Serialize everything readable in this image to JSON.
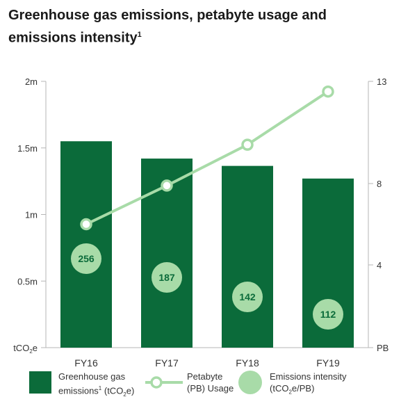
{
  "title": "Greenhouse gas emissions, petabyte usage and emissions intensity",
  "title_footnote": "1",
  "chart_data": {
    "type": "bar",
    "categories": [
      "FY16",
      "FY17",
      "FY18",
      "FY19"
    ],
    "series": [
      {
        "name": "Greenhouse gas emissions¹ (tCO₂e)",
        "kind": "bar",
        "axis": "left",
        "values": [
          1550000,
          1420000,
          1365000,
          1270000
        ]
      },
      {
        "name": "Petabyte (PB) Usage",
        "kind": "line",
        "axis": "right",
        "values": [
          6.0,
          7.9,
          9.9,
          12.5
        ]
      },
      {
        "name": "Emissions intensity (tCO₂e/PB)",
        "kind": "circle-label",
        "values": [
          256,
          187,
          142,
          112
        ]
      }
    ],
    "left_axis": {
      "unit": "tCO₂e",
      "ticks": [
        0,
        500000,
        1000000,
        1500000,
        2000000
      ],
      "tick_labels": [
        "tCO₂e",
        "0.5m",
        "1m",
        "1.5m",
        "2m"
      ],
      "range": [
        0,
        2000000
      ]
    },
    "right_axis": {
      "unit": "PB",
      "ticks": [
        0,
        4,
        8,
        13
      ],
      "tick_labels": [
        "PB",
        "4",
        "8",
        "13"
      ],
      "breakpoints": [
        0,
        4,
        8,
        13
      ]
    },
    "grid": false,
    "colors": {
      "bar": "#0b6b3a",
      "line": "#a8dba8",
      "intensity_circle": "#a8dba8",
      "intensity_text": "#0b6b3a"
    }
  },
  "legend": {
    "emissions_line1": "Greenhouse gas",
    "emissions_line2_prefix": "emissions",
    "emissions_sup": "1",
    "emissions_line2_mid": " (tCO",
    "emissions_sub": "2",
    "emissions_line2_suffix": "e)",
    "petabyte_line1": "Petabyte",
    "petabyte_line2": "(PB) Usage",
    "intensity_line1": "Emissions intensity",
    "intensity_line2_prefix": "(tCO",
    "intensity_sub": "2",
    "intensity_line2_suffix": "e/PB)"
  }
}
